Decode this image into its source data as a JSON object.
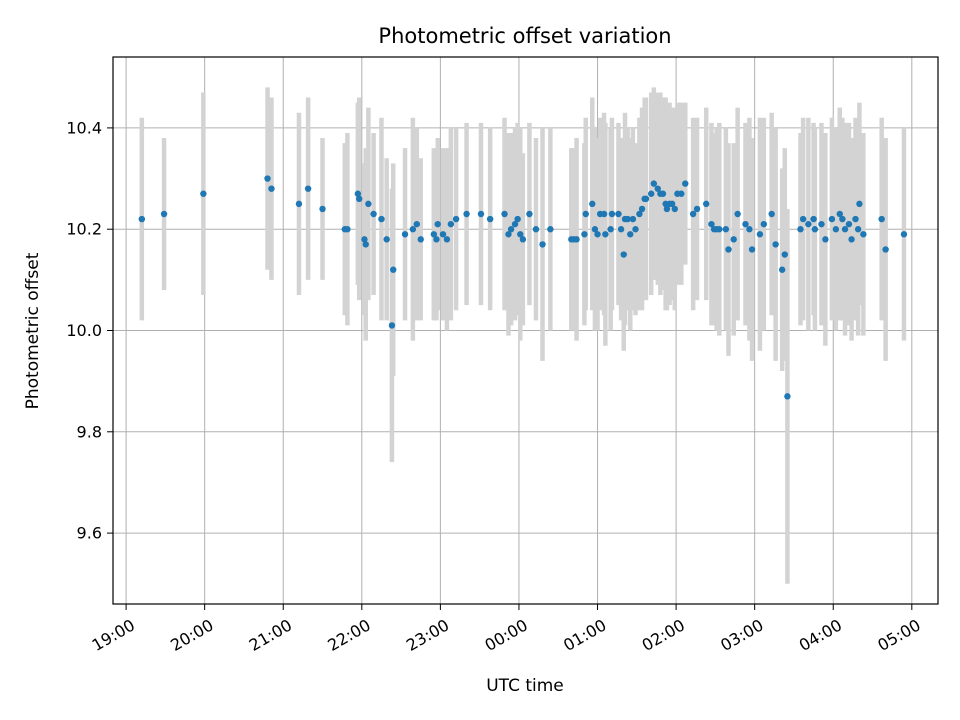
{
  "chart_data": {
    "type": "scatter",
    "title": "Photometric offset variation",
    "xlabel": "UTC time",
    "ylabel": "Photometric offset",
    "grid": true,
    "xlim": [
      "18:50",
      "05:20"
    ],
    "ylim": [
      9.46,
      10.54
    ],
    "x_ticks": [
      "19:00",
      "20:00",
      "21:00",
      "22:00",
      "23:00",
      "00:00",
      "01:00",
      "02:00",
      "03:00",
      "04:00",
      "05:00"
    ],
    "y_ticks": [
      "9.6",
      "9.8",
      "10.0",
      "10.2",
      "10.4"
    ],
    "colors": {
      "point": "#1f77b4",
      "errorbar": "#d3d3d3",
      "grid": "#b0b0b0"
    },
    "series": [
      {
        "x": [
          "19:12",
          "19:29",
          "19:59",
          "20:48",
          "20:51",
          "21:12",
          "21:19",
          "21:30",
          "21:47",
          "21:49",
          "21:57",
          "21:58",
          "22:02",
          "22:03",
          "22:05",
          "22:09",
          "22:15",
          "22:19",
          "22:23",
          "22:24",
          "22:33",
          "22:39",
          "22:42",
          "22:45",
          "22:55",
          "22:57",
          "22:58",
          "23:02",
          "23:05",
          "23:08",
          "23:12",
          "23:20",
          "23:31",
          "23:38",
          "23:49",
          "23:52",
          "23:54",
          "23:57",
          "23:59",
          "00:01",
          "00:03",
          "00:08",
          "00:13",
          "00:18",
          "00:24",
          "00:40",
          "00:42",
          "00:44",
          "00:50",
          "00:51",
          "00:56",
          "00:58",
          "01:00",
          "01:02",
          "01:05",
          "01:06",
          "01:10",
          "01:11",
          "01:16",
          "01:18",
          "01:20",
          "01:21",
          "01:23",
          "01:25",
          "01:27",
          "01:29",
          "01:32",
          "01:34",
          "01:36",
          "01:37",
          "01:41",
          "01:43",
          "01:46",
          "01:48",
          "01:50",
          "01:52",
          "01:53",
          "01:55",
          "01:57",
          "01:59",
          "02:01",
          "02:04",
          "02:07",
          "02:13",
          "02:16",
          "02:23",
          "02:27",
          "02:29",
          "02:31",
          "02:33",
          "02:38",
          "02:40",
          "02:44",
          "02:47",
          "02:53",
          "02:56",
          "02:58",
          "03:04",
          "03:07",
          "03:13",
          "03:16",
          "03:21",
          "03:23",
          "03:25",
          "03:35",
          "03:37",
          "03:41",
          "03:45",
          "03:46",
          "03:51",
          "03:54",
          "03:59",
          "04:02",
          "04:05",
          "04:07",
          "04:09",
          "04:12",
          "04:14",
          "04:17",
          "04:19",
          "04:20",
          "04:23",
          "04:37",
          "04:40",
          "04:54"
        ],
        "y": [
          10.22,
          10.23,
          10.27,
          10.3,
          10.28,
          10.25,
          10.28,
          10.24,
          10.2,
          10.2,
          10.27,
          10.26,
          10.18,
          10.17,
          10.25,
          10.23,
          10.22,
          10.18,
          10.01,
          10.12,
          10.19,
          10.2,
          10.21,
          10.18,
          10.19,
          10.18,
          10.21,
          10.19,
          10.18,
          10.21,
          10.22,
          10.23,
          10.23,
          10.22,
          10.23,
          10.19,
          10.2,
          10.21,
          10.22,
          10.19,
          10.18,
          10.23,
          10.2,
          10.17,
          10.2,
          10.18,
          10.18,
          10.18,
          10.19,
          10.23,
          10.25,
          10.2,
          10.19,
          10.23,
          10.23,
          10.19,
          10.2,
          10.23,
          10.23,
          10.2,
          10.15,
          10.22,
          10.22,
          10.19,
          10.22,
          10.2,
          10.23,
          10.24,
          10.26,
          10.26,
          10.27,
          10.29,
          10.28,
          10.27,
          10.27,
          10.25,
          10.24,
          10.25,
          10.25,
          10.24,
          10.27,
          10.27,
          10.29,
          10.23,
          10.24,
          10.25,
          10.21,
          10.2,
          10.2,
          10.2,
          10.2,
          10.16,
          10.18,
          10.23,
          10.21,
          10.2,
          10.16,
          10.19,
          10.21,
          10.23,
          10.17,
          10.12,
          10.15,
          9.87,
          10.2,
          10.22,
          10.21,
          10.22,
          10.2,
          10.21,
          10.18,
          10.22,
          10.2,
          10.23,
          10.22,
          10.2,
          10.21,
          10.18,
          10.22,
          10.2,
          10.25,
          10.19,
          10.22,
          10.16,
          10.19
        ],
        "error": [
          0.2,
          0.15,
          0.2,
          0.18,
          0.18,
          0.18,
          0.18,
          0.14,
          0.17,
          0.19,
          0.18,
          0.2,
          0.15,
          0.19,
          0.19,
          0.16,
          0.2,
          0.16,
          0.27,
          0.21,
          0.17,
          0.22,
          0.19,
          0.16,
          0.17,
          0.16,
          0.17,
          0.17,
          0.18,
          0.19,
          0.18,
          0.18,
          0.18,
          0.18,
          0.19,
          0.2,
          0.19,
          0.19,
          0.19,
          0.21,
          0.17,
          0.18,
          0.18,
          0.23,
          0.2,
          0.18,
          0.18,
          0.2,
          0.18,
          0.19,
          0.21,
          0.2,
          0.19,
          0.19,
          0.2,
          0.22,
          0.2,
          0.19,
          0.18,
          0.18,
          0.19,
          0.21,
          0.18,
          0.19,
          0.18,
          0.17,
          0.19,
          0.2,
          0.2,
          0.2,
          0.2,
          0.19,
          0.19,
          0.2,
          0.19,
          0.21,
          0.2,
          0.2,
          0.19,
          0.2,
          0.18,
          0.18,
          0.16,
          0.19,
          0.18,
          0.19,
          0.2,
          0.19,
          0.2,
          0.21,
          0.2,
          0.21,
          0.19,
          0.21,
          0.2,
          0.22,
          0.22,
          0.23,
          0.21,
          0.2,
          0.23,
          0.2,
          0.21,
          0.37,
          0.19,
          0.2,
          0.21,
          0.19,
          0.2,
          0.2,
          0.21,
          0.2,
          0.2,
          0.21,
          0.2,
          0.21,
          0.2,
          0.2,
          0.2,
          0.21,
          0.2,
          0.2,
          0.2,
          0.22,
          0.21
        ]
      }
    ]
  }
}
